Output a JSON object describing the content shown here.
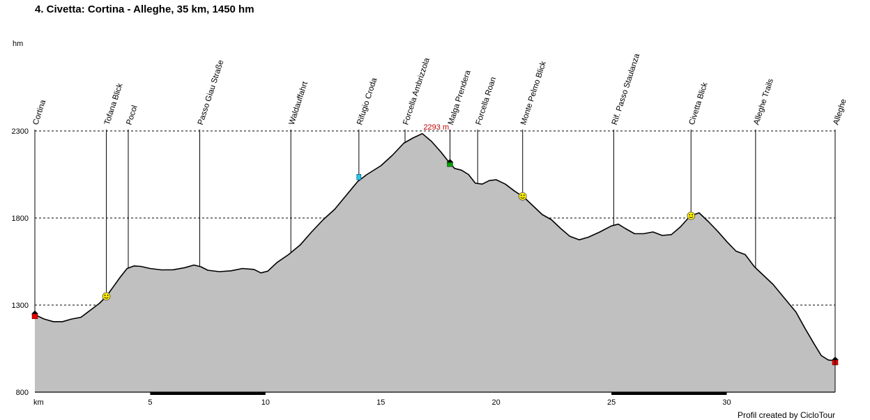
{
  "title": "4. Civetta: Cortina - Alleghe, 35 km, 1450 hm",
  "credit": "Profil created by CicloTour",
  "chart_data": {
    "type": "area",
    "ylabel": "hm",
    "xlabel": "km",
    "xlim": [
      0,
      34.7
    ],
    "ylim": [
      800,
      2300
    ],
    "y_ticks": [
      800,
      1300,
      1800,
      2300
    ],
    "x_ticks": [
      5,
      10,
      15,
      20,
      25,
      30
    ],
    "grid": "horizontal dashed",
    "fill_color": "#c0c0c0",
    "max_label": "2293 m",
    "max_label_color": "#c00000",
    "max_point": [
      16.8,
      2293
    ],
    "profile": {
      "x": [
        0,
        0.4,
        0.8,
        1.2,
        1.6,
        2,
        2.4,
        2.8,
        3.1,
        3.4,
        3.7,
        4,
        4.3,
        4.6,
        5,
        5.5,
        6,
        6.5,
        6.9,
        7.2,
        7.5,
        8,
        8.5,
        9,
        9.5,
        9.8,
        10.1,
        10.5,
        11,
        11.5,
        12,
        12.5,
        13,
        13.5,
        14,
        14.4,
        15,
        15.5,
        16,
        16.4,
        16.8,
        17.2,
        17.6,
        17.9,
        18.2,
        18.5,
        18.8,
        19.1,
        19.4,
        19.7,
        20,
        20.4,
        20.8,
        21.2,
        21.6,
        22,
        22.4,
        22.8,
        23.2,
        23.6,
        24,
        24.5,
        25,
        25.3,
        25.6,
        26,
        26.4,
        26.8,
        27.2,
        27.6,
        28,
        28.4,
        28.8,
        29.2,
        29.6,
        30,
        30.4,
        30.8,
        31.2,
        31.6,
        32,
        32.5,
        33,
        33.4,
        33.8,
        34.1,
        34.4,
        34.7
      ],
      "y": [
        1245,
        1220,
        1205,
        1205,
        1220,
        1230,
        1270,
        1310,
        1350,
        1405,
        1460,
        1510,
        1525,
        1522,
        1510,
        1502,
        1503,
        1515,
        1530,
        1520,
        1500,
        1492,
        1497,
        1510,
        1505,
        1485,
        1495,
        1545,
        1590,
        1645,
        1720,
        1790,
        1850,
        1930,
        2010,
        2050,
        2100,
        2160,
        2230,
        2260,
        2285,
        2240,
        2180,
        2130,
        2085,
        2075,
        2050,
        2000,
        1995,
        2015,
        2020,
        1995,
        1955,
        1920,
        1870,
        1820,
        1790,
        1740,
        1695,
        1675,
        1690,
        1720,
        1755,
        1765,
        1740,
        1710,
        1710,
        1720,
        1700,
        1705,
        1750,
        1810,
        1830,
        1780,
        1725,
        1665,
        1610,
        1590,
        1520,
        1470,
        1420,
        1340,
        1260,
        1165,
        1075,
        1010,
        985,
        980
      ]
    },
    "waypoints": [
      {
        "label": "Cortina",
        "x": 0,
        "marker": "house"
      },
      {
        "label": "Tofana Blick",
        "x": 3.1,
        "marker": "smiley"
      },
      {
        "label": "Pocol",
        "x": 4.05,
        "marker": ""
      },
      {
        "label": "Passo Giau Straße",
        "x": 7.15,
        "marker": ""
      },
      {
        "label": "Waldauffahrt",
        "x": 11.1,
        "marker": ""
      },
      {
        "label": "Rifugio Croda",
        "x": 14.05,
        "marker": "cup"
      },
      {
        "label": "Forcella Ambrizzola",
        "x": 16.05,
        "marker": ""
      },
      {
        "label": "Malga Prendera",
        "x": 18,
        "marker": "hut"
      },
      {
        "label": "Forcella Roan",
        "x": 19.2,
        "marker": ""
      },
      {
        "label": "Monte Pelmo Blick",
        "x": 21.15,
        "marker": "smiley"
      },
      {
        "label": "Rif. Passo Staulanza",
        "x": 25.1,
        "marker": ""
      },
      {
        "label": "Civetta Blick",
        "x": 28.45,
        "marker": "smiley"
      },
      {
        "label": "Alleghe Trails",
        "x": 31.25,
        "marker": ""
      },
      {
        "label": "Alleghe",
        "x": 34.7,
        "marker": "house"
      }
    ],
    "km_bands": [
      [
        5,
        10
      ],
      [
        25,
        30
      ]
    ]
  }
}
